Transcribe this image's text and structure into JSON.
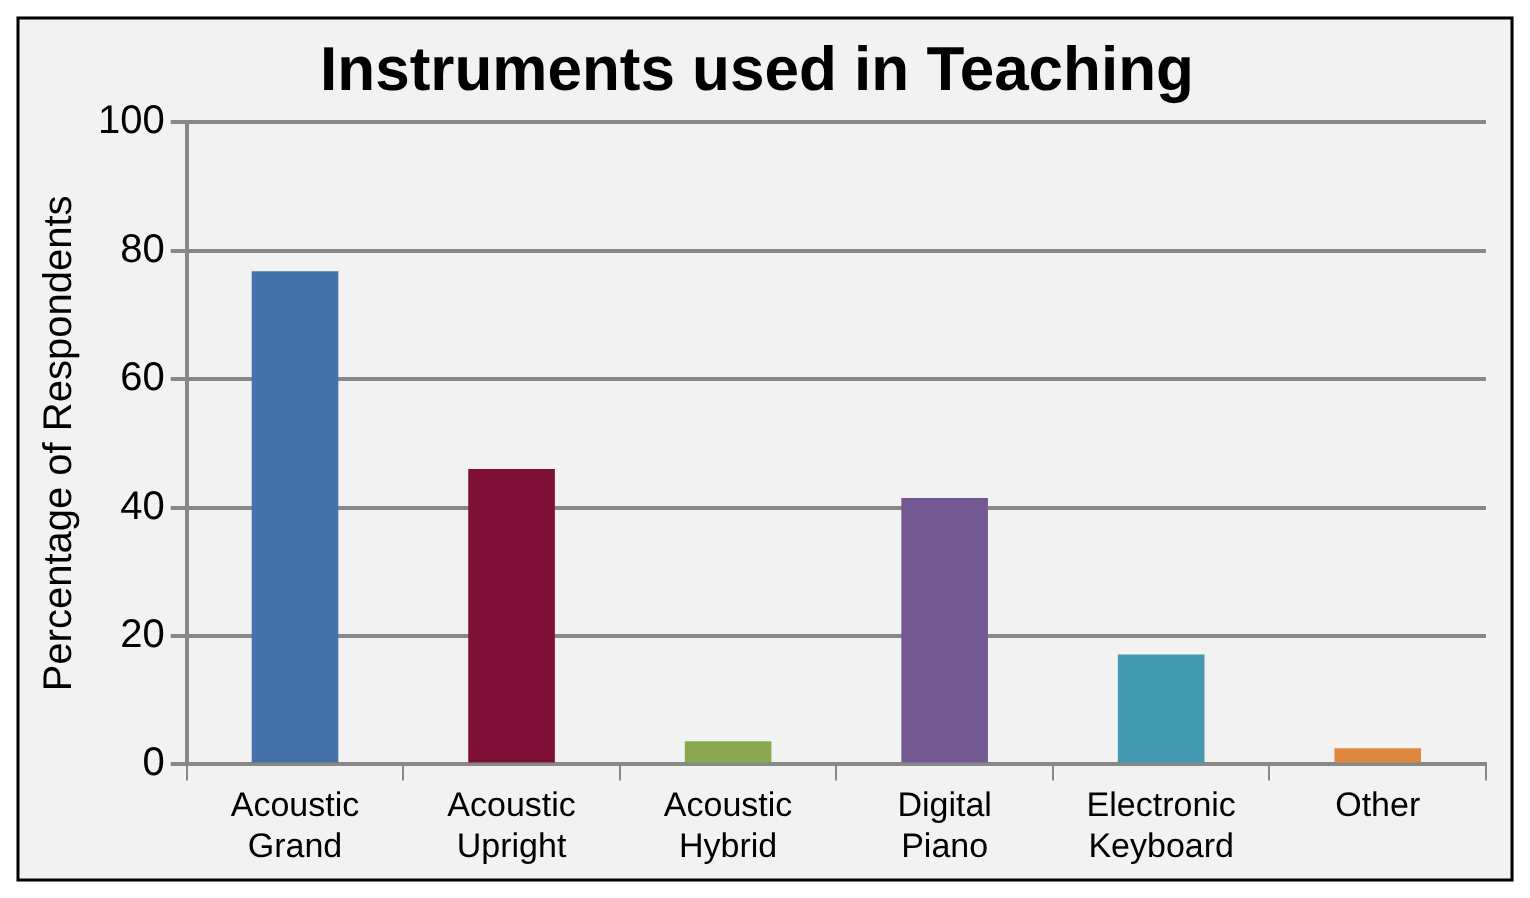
{
  "chart_data": {
    "type": "bar",
    "title": "Instruments used in Teaching",
    "ylabel": "Percentage of Respondents",
    "categories": [
      "Acoustic Grand",
      "Acoustic Upright",
      "Acoustic Hybrid",
      "Digital Piano",
      "Electronic Keyboard",
      "Other"
    ],
    "values": [
      76.8,
      46,
      3.6,
      41.5,
      17.1,
      2.5
    ],
    "colors": [
      "#4472a8",
      "#7f0f37",
      "#8aa84f",
      "#735891",
      "#4299b0",
      "#e0873f"
    ],
    "ylim": [
      0,
      100
    ],
    "yticks": [
      0,
      20,
      40,
      60,
      80,
      100
    ],
    "grid": "y",
    "legend": false
  }
}
